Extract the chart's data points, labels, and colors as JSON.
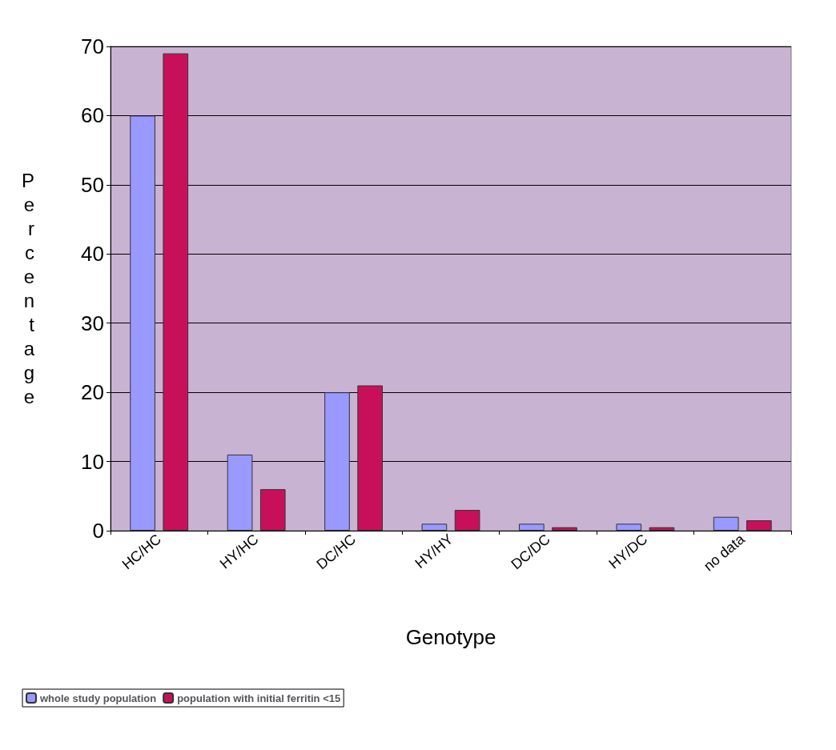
{
  "chart_data": {
    "type": "bar",
    "xlabel": "Genotype",
    "ylabel": "Percentage",
    "categories": [
      "HC/HC",
      "HY/HC",
      "DC/HC",
      "HY/HY",
      "DC/DC",
      "HY/DC",
      "no data"
    ],
    "series": [
      {
        "name": "whole study population",
        "color": "#9999ff",
        "values": [
          60,
          11,
          20,
          1,
          1,
          1,
          2
        ]
      },
      {
        "name": "population with initial ferritin <15",
        "color": "#c8105a",
        "values": [
          69,
          6,
          21,
          3,
          0.5,
          0.5,
          1.5
        ]
      }
    ],
    "ylim": [
      0,
      70
    ],
    "yticks": [
      0,
      10,
      20,
      30,
      40,
      50,
      60,
      70
    ],
    "grid": "y",
    "legend": "bottom left"
  }
}
